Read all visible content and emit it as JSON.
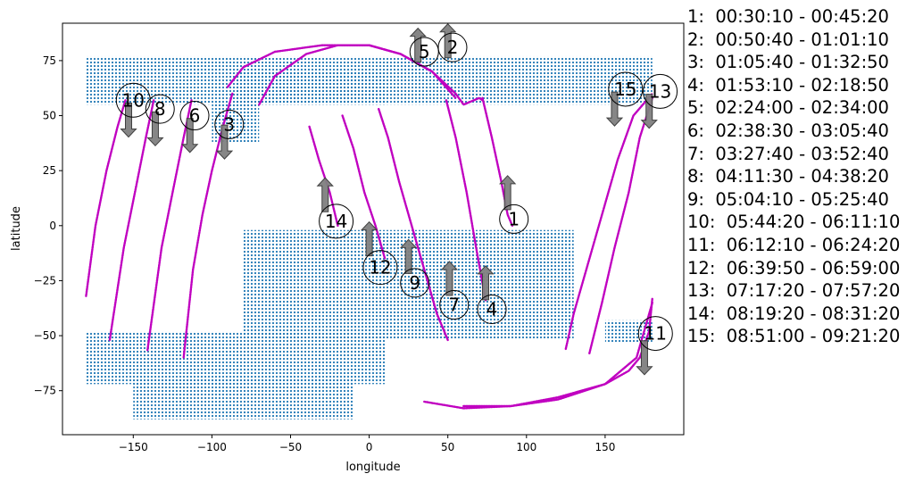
{
  "chart_data": {
    "type": "scatter",
    "title": "",
    "xlabel": "longitude",
    "ylabel": "latitude",
    "xlim": [
      -195,
      200
    ],
    "ylim": [
      -95,
      92
    ],
    "x_ticks": [
      -150,
      -100,
      -50,
      0,
      50,
      100,
      150
    ],
    "y_ticks": [
      -75,
      -50,
      -25,
      0,
      25,
      50,
      75
    ],
    "x_tick_labels": [
      "−150",
      "−100",
      "−50",
      "0",
      "50",
      "100",
      "150"
    ],
    "y_tick_labels": [
      "−75",
      "−50",
      "−25",
      "0",
      "25",
      "50",
      "75"
    ],
    "grid": false,
    "colors": {
      "region": "#1f77b4",
      "track": "#c000c0",
      "arrow": "#808080"
    },
    "regions": [
      {
        "lon": [
          -180,
          180
        ],
        "lat": [
          55,
          77
        ]
      },
      {
        "lon": [
          -100,
          -70
        ],
        "lat": [
          38,
          56
        ]
      },
      {
        "lon": [
          -85,
          10
        ],
        "lat": [
          55,
          70
        ]
      },
      {
        "lon": [
          -80,
          130
        ],
        "lat": [
          -52,
          -2
        ]
      },
      {
        "lon": [
          -180,
          10
        ],
        "lat": [
          -72,
          -48
        ]
      },
      {
        "lon": [
          -150,
          -10
        ],
        "lat": [
          -88,
          -70
        ]
      },
      {
        "lon": [
          150,
          180
        ],
        "lat": [
          -53,
          -43
        ]
      }
    ],
    "tracks": [
      {
        "lon": [
          72,
          78,
          84,
          88,
          91
        ],
        "lat": [
          58,
          40,
          20,
          5,
          0
        ]
      },
      {
        "lon": [
          49,
          55,
          62,
          68,
          74
        ],
        "lat": [
          57,
          40,
          15,
          -10,
          -34
        ]
      },
      {
        "lon": [
          6,
          12,
          19,
          27,
          35,
          43,
          50
        ],
        "lat": [
          53,
          40,
          20,
          0,
          -20,
          -40,
          -52
        ]
      },
      {
        "lon": [
          -17,
          -10,
          -3,
          4,
          10
        ],
        "lat": [
          50,
          35,
          15,
          0,
          -15
        ]
      },
      {
        "lon": [
          -38,
          -32,
          -25,
          -20
        ],
        "lat": [
          45,
          30,
          15,
          0
        ]
      },
      {
        "lon": [
          -87,
          -93,
          -100,
          -106,
          -112,
          -118
        ],
        "lat": [
          60,
          45,
          25,
          5,
          -20,
          -60
        ]
      },
      {
        "lon": [
          -113,
          -118,
          -125,
          -132,
          -141
        ],
        "lat": [
          57,
          40,
          15,
          -10,
          -57
        ]
      },
      {
        "lon": [
          -137,
          -142,
          -149,
          -156,
          -165
        ],
        "lat": [
          57,
          40,
          15,
          -10,
          -52
        ]
      },
      {
        "lon": [
          -155,
          -160,
          -167,
          -174,
          -180
        ],
        "lat": [
          57,
          45,
          25,
          0,
          -32
        ]
      },
      {
        "lon": [
          -90,
          -80,
          -60,
          -30,
          0,
          20,
          40,
          55,
          60,
          70,
          72
        ],
        "lat": [
          63,
          72,
          79,
          82,
          82,
          78,
          70,
          60,
          55,
          58,
          57
        ]
      },
      {
        "lon": [
          -70,
          -60,
          -40,
          -20,
          0,
          20,
          40,
          55
        ],
        "lat": [
          55,
          68,
          78,
          82,
          82,
          78,
          70,
          58
        ]
      },
      {
        "lon": [
          125,
          130,
          138,
          148,
          158,
          168,
          180
        ],
        "lat": [
          -56,
          -40,
          -20,
          5,
          30,
          50,
          60
        ]
      },
      {
        "lon": [
          140,
          148,
          156,
          165,
          172,
          180
        ],
        "lat": [
          -58,
          -35,
          -10,
          15,
          40,
          58
        ]
      },
      {
        "lon": [
          35,
          60,
          90,
          120,
          150,
          165,
          172,
          178,
          180
        ],
        "lat": [
          -80,
          -83,
          -82,
          -78,
          -72,
          -66,
          -60,
          -48,
          -33
        ]
      },
      {
        "lon": [
          60,
          90,
          120,
          150,
          170,
          180
        ],
        "lat": [
          -82,
          -82,
          -79,
          -72,
          -60,
          -35
        ]
      }
    ],
    "annotations": [
      {
        "label": "1",
        "lon": 92,
        "lat": 3,
        "arrow": "up",
        "arrow_lon": 88,
        "arrow_lat": 15
      },
      {
        "label": "2",
        "lon": 53,
        "lat": 81,
        "arrow": "up",
        "arrow_lon": 50,
        "arrow_lat": 84
      },
      {
        "label": "3",
        "lon": -89,
        "lat": 46,
        "arrow": "down",
        "arrow_lon": -92,
        "arrow_lat": 38
      },
      {
        "label": "4",
        "lon": 78,
        "lat": -38,
        "arrow": "up",
        "arrow_lon": 74,
        "arrow_lat": -26
      },
      {
        "label": "5",
        "lon": 35,
        "lat": 79,
        "arrow": "up",
        "arrow_lon": 31,
        "arrow_lat": 82
      },
      {
        "label": "6",
        "lon": -111,
        "lat": 50,
        "arrow": "down",
        "arrow_lon": -114,
        "arrow_lat": 41
      },
      {
        "label": "7",
        "lon": 54,
        "lat": -36,
        "arrow": "up",
        "arrow_lon": 51,
        "arrow_lat": -24
      },
      {
        "label": "8",
        "lon": -133,
        "lat": 53,
        "arrow": "down",
        "arrow_lon": -136,
        "arrow_lat": 44
      },
      {
        "label": "9",
        "lon": 29,
        "lat": -26,
        "arrow": "up",
        "arrow_lon": 25,
        "arrow_lat": -14
      },
      {
        "label": "10",
        "lon": -150,
        "lat": 57,
        "arrow": "down",
        "arrow_lon": -153,
        "arrow_lat": 48
      },
      {
        "label": "11",
        "lon": 182,
        "lat": -49,
        "arrow": "down",
        "arrow_lon": 175,
        "arrow_lat": -60
      },
      {
        "label": "12",
        "lon": 7,
        "lat": -19,
        "arrow": "up",
        "arrow_lon": 0,
        "arrow_lat": -6
      },
      {
        "label": "13",
        "lon": 185,
        "lat": 61,
        "arrow": "down",
        "arrow_lon": 178,
        "arrow_lat": 52
      },
      {
        "label": "14",
        "lon": -21,
        "lat": 2,
        "arrow": "up",
        "arrow_lon": -28,
        "arrow_lat": 14
      },
      {
        "label": "15",
        "lon": 163,
        "lat": 62,
        "arrow": "down",
        "arrow_lon": 156,
        "arrow_lat": 53
      }
    ]
  },
  "legend": [
    "1:  00:30:10 - 00:45:20",
    "2:  00:50:40 - 01:01:10",
    "3:  01:05:40 - 01:32:50",
    "4:  01:53:10 - 02:18:50",
    "5:  02:24:00 - 02:34:00",
    "6:  02:38:30 - 03:05:40",
    "7:  03:27:40 - 03:52:40",
    "8:  04:11:30 - 04:38:20",
    "9:  05:04:10 - 05:25:40",
    "10:  05:44:20 - 06:11:10",
    "11:  06:12:10 - 06:24:20",
    "12:  06:39:50 - 06:59:00",
    "13:  07:17:20 - 07:57:20",
    "14:  08:19:20 - 08:31:20",
    "15:  08:51:00 - 09:21:20"
  ]
}
